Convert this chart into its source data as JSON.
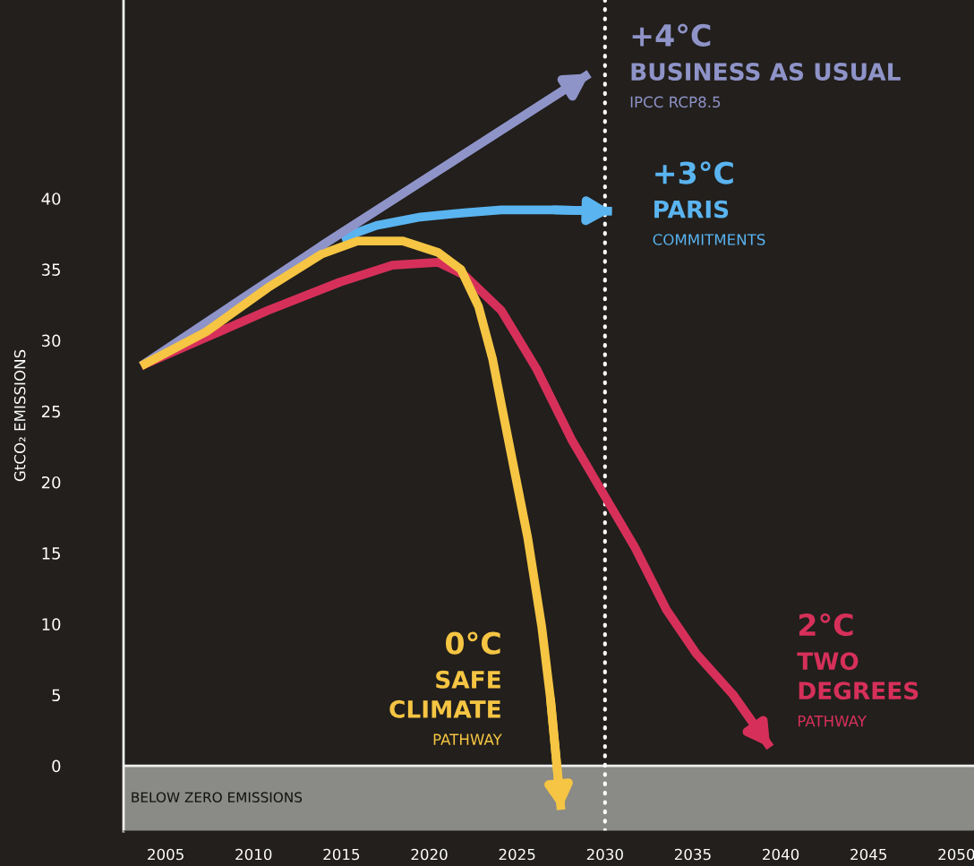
{
  "chart_data": {
    "type": "line",
    "ylabel": "GtCO₂ EMISSIONS",
    "x": [
      2003.6,
      2007.3,
      2010.8,
      2013.9,
      2015.9,
      2018.5,
      2020.5,
      2021.8,
      2022.8,
      2023.6,
      2024.1,
      2024.8,
      2025.6,
      2026.4,
      2026.9,
      2027.5
    ],
    "series": [
      {
        "color": "#8e93c8",
        "x": [
          2003.6,
          2013.9,
          2029.1
        ],
        "values": [
          28.2,
          36.7,
          48.8
        ]
      },
      {
        "color": "#5ab4f0",
        "x": [
          2015.0,
          2017.0,
          2019.5,
          2022.0,
          2024.1,
          2027.1,
          2030.4
        ],
        "values": [
          37.2,
          38.1,
          38.7,
          39.0,
          39.2,
          39.2,
          39.1
        ]
      },
      {
        "color": "#d6305a",
        "x": [
          2003.6,
          2007.3,
          2010.8,
          2014.9,
          2017.9,
          2020.5,
          2022.0,
          2024.1,
          2026.1,
          2028.1,
          2029.9,
          2031.7,
          2033.5,
          2035.2,
          2037.3,
          2039.4
        ],
        "values": [
          28.2,
          30.2,
          32.1,
          34.1,
          35.3,
          35.5,
          34.6,
          32.1,
          28.0,
          23.0,
          19.2,
          15.4,
          11.0,
          7.9,
          5.0,
          1.3
        ]
      },
      {
        "color": "#f5c543",
        "values": [
          28.2,
          30.6,
          33.7,
          36.1,
          37.0,
          37.0,
          36.2,
          35.0,
          32.4,
          28.7,
          25.5,
          21.1,
          16.1,
          9.8,
          4.7,
          -3.1
        ]
      }
    ],
    "xlim": [
      2002.6,
      2051
    ],
    "ylim": [
      -4.6,
      54
    ],
    "xticks": [
      2005,
      2010,
      2015,
      2020,
      2025,
      2030,
      2035,
      2040,
      2045,
      2050
    ],
    "yticks": [
      0,
      5,
      10,
      15,
      20,
      25,
      30,
      35,
      40
    ],
    "ref_lines": [
      {
        "axis": "x",
        "value": 2030,
        "color": "#ffffff",
        "line_style": "dotted"
      }
    ],
    "bands": [
      {
        "axis": "y",
        "from": -4.6,
        "to": 0,
        "label": "BELOW ZERO EMISSIONS",
        "color": "#8a8a86"
      }
    ],
    "annotations": [
      "+4°C",
      "BUSINESS AS USUAL",
      "IPCC RCP8.5",
      "+3°C",
      "PARIS",
      "COMMITMENTS",
      "2°C",
      "TWO",
      "DEGREES",
      "PATHWAY",
      "0°C",
      "SAFE",
      "CLIMATE",
      "PATHWAY"
    ],
    "grid": false,
    "legend": false
  }
}
